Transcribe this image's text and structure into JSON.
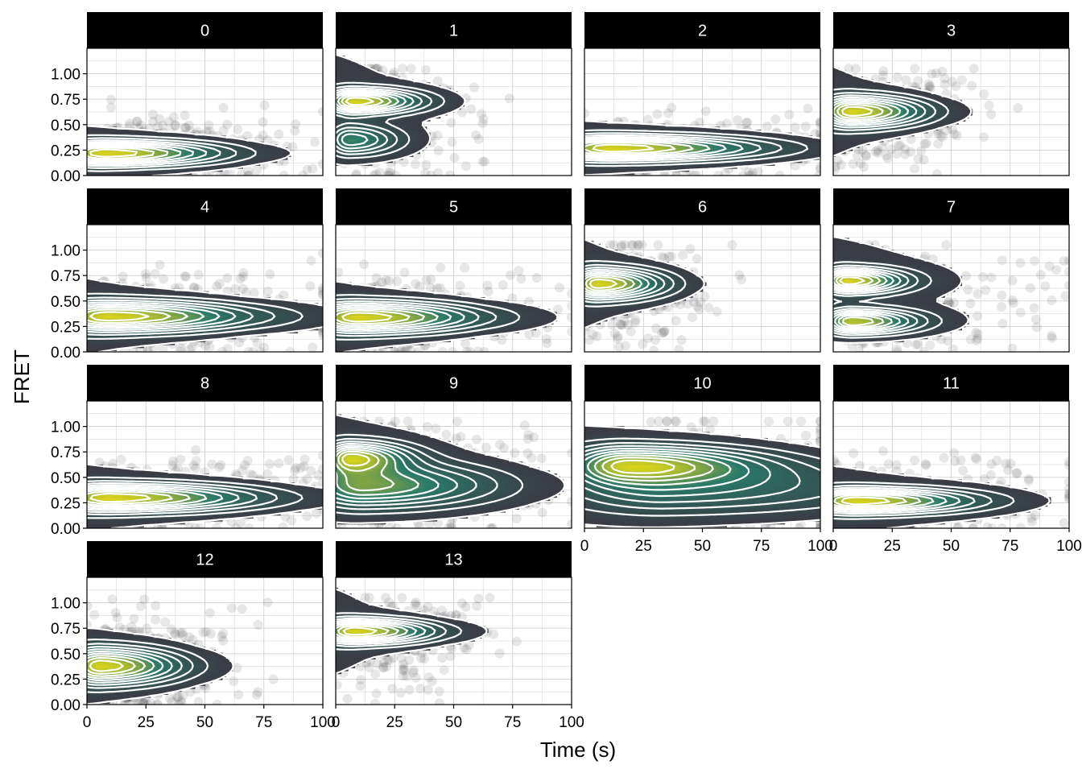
{
  "chart_data": {
    "type": "scatter",
    "title": "",
    "xlabel": "Time (s)",
    "ylabel": "FRET",
    "xlim": [
      0,
      100
    ],
    "ylim": [
      0,
      1.25
    ],
    "x_ticks": [
      0,
      25,
      50,
      75,
      100
    ],
    "x_tick_labels": [
      "0",
      "25",
      "50",
      "75",
      "100"
    ],
    "y_ticks": [
      0,
      0.25,
      0.5,
      0.75,
      1.0
    ],
    "y_tick_labels": [
      "0.00",
      "0.25",
      "0.50",
      "0.75",
      "1.00"
    ],
    "grid": true,
    "overlay": "2D density contours (white) with viridis fill over semi-transparent grey points",
    "colors": {
      "points": "#3a3a40",
      "density_low": "#3b3b44",
      "density_mid": "#2a7a6a",
      "density_high": "#d6d21e",
      "contour": "#ffffff",
      "strip_bg": "#000000",
      "strip_text": "#ffffff"
    },
    "facets": [
      {
        "label": "0",
        "peaks": [
          {
            "x": 8,
            "y": 0.22,
            "sx": 14,
            "sy": 0.08,
            "w": 1.0
          }
        ],
        "extent_x": 70,
        "extent_y": 0.55
      },
      {
        "label": "1",
        "peaks": [
          {
            "x": 8,
            "y": 0.73,
            "sx": 8,
            "sy": 0.08,
            "w": 1.0
          },
          {
            "x": 6,
            "y": 0.35,
            "sx": 6,
            "sy": 0.1,
            "w": 0.6
          }
        ],
        "extent_x": 60,
        "extent_y": 1.0
      },
      {
        "label": "2",
        "peaks": [
          {
            "x": 12,
            "y": 0.27,
            "sx": 18,
            "sy": 0.08,
            "w": 1.0
          }
        ],
        "extent_x": 98,
        "extent_y": 0.55
      },
      {
        "label": "3",
        "peaks": [
          {
            "x": 8,
            "y": 0.63,
            "sx": 9,
            "sy": 0.1,
            "w": 1.0
          }
        ],
        "extent_x": 45,
        "extent_y": 0.95
      },
      {
        "label": "4",
        "peaks": [
          {
            "x": 10,
            "y": 0.35,
            "sx": 18,
            "sy": 0.1,
            "w": 1.0
          }
        ],
        "extent_x": 65,
        "extent_y": 0.8
      },
      {
        "label": "5",
        "peaks": [
          {
            "x": 10,
            "y": 0.34,
            "sx": 15,
            "sy": 0.1,
            "w": 1.0
          }
        ],
        "extent_x": 60,
        "extent_y": 0.75
      },
      {
        "label": "6",
        "peaks": [
          {
            "x": 6,
            "y": 0.67,
            "sx": 8,
            "sy": 0.1,
            "w": 1.0
          }
        ],
        "extent_x": 45,
        "extent_y": 0.95
      },
      {
        "label": "7",
        "peaks": [
          {
            "x": 6,
            "y": 0.7,
            "sx": 7,
            "sy": 0.08,
            "w": 1.0
          },
          {
            "x": 8,
            "y": 0.3,
            "sx": 8,
            "sy": 0.08,
            "w": 0.95
          }
        ],
        "extent_x": 95,
        "extent_y": 0.95
      },
      {
        "label": "8",
        "peaks": [
          {
            "x": 10,
            "y": 0.3,
            "sx": 18,
            "sy": 0.09,
            "w": 1.0
          }
        ],
        "extent_x": 85,
        "extent_y": 0.7
      },
      {
        "label": "9",
        "peaks": [
          {
            "x": 6,
            "y": 0.7,
            "sx": 7,
            "sy": 0.1,
            "w": 0.9
          },
          {
            "x": 12,
            "y": 0.42,
            "sx": 16,
            "sy": 0.15,
            "w": 0.8
          }
        ],
        "extent_x": 80,
        "extent_y": 0.95
      },
      {
        "label": "10",
        "peaks": [
          {
            "x": 18,
            "y": 0.63,
            "sx": 16,
            "sy": 0.12,
            "w": 1.0
          },
          {
            "x": 35,
            "y": 0.4,
            "sx": 30,
            "sy": 0.18,
            "w": 0.55
          }
        ],
        "extent_x": 100,
        "extent_y": 0.95
      },
      {
        "label": "11",
        "peaks": [
          {
            "x": 10,
            "y": 0.27,
            "sx": 14,
            "sy": 0.08,
            "w": 1.0
          }
        ],
        "extent_x": 100,
        "extent_y": 0.75
      },
      {
        "label": "12",
        "peaks": [
          {
            "x": 6,
            "y": 0.38,
            "sx": 10,
            "sy": 0.12,
            "w": 1.0
          }
        ],
        "extent_x": 45,
        "extent_y": 0.75
      },
      {
        "label": "13",
        "peaks": [
          {
            "x": 8,
            "y": 0.72,
            "sx": 10,
            "sy": 0.08,
            "w": 1.0
          }
        ],
        "extent_x": 45,
        "extent_y": 0.9
      }
    ]
  }
}
